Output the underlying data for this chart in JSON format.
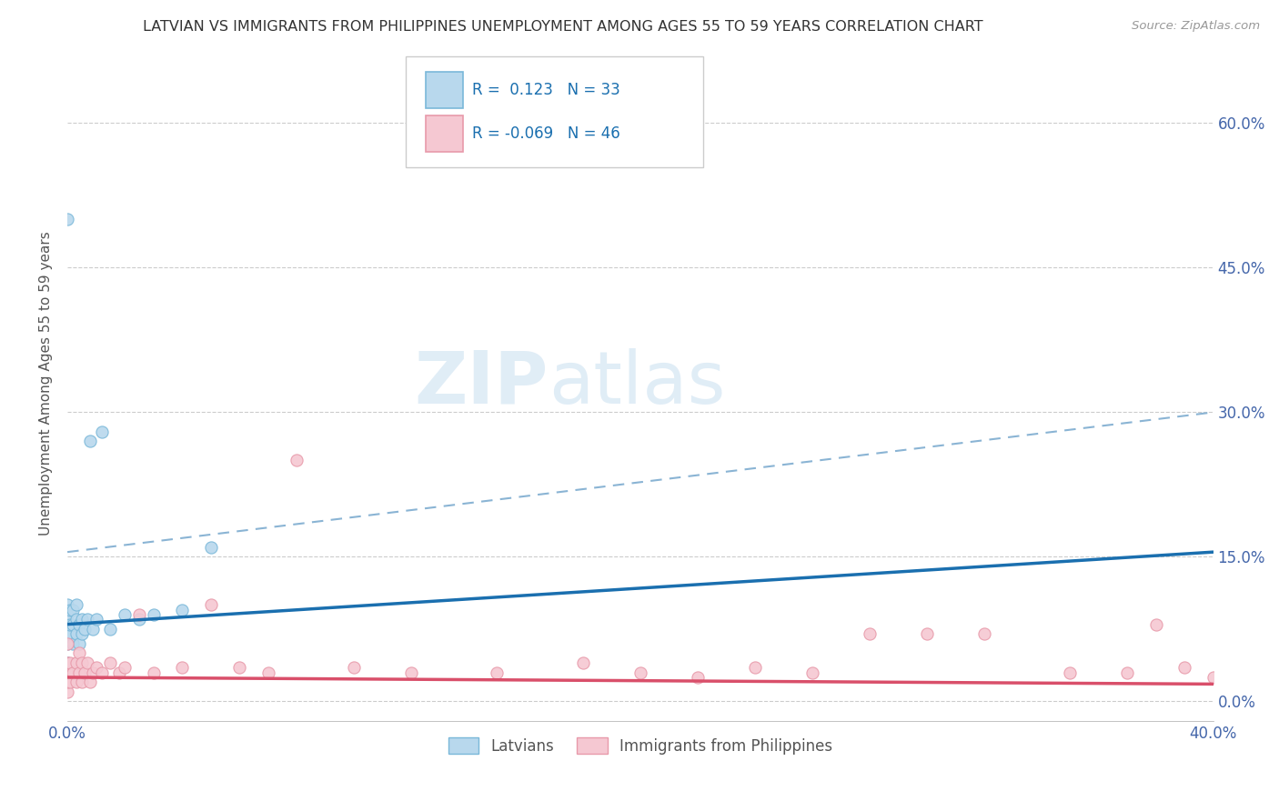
{
  "title": "LATVIAN VS IMMIGRANTS FROM PHILIPPINES UNEMPLOYMENT AMONG AGES 55 TO 59 YEARS CORRELATION CHART",
  "source": "Source: ZipAtlas.com",
  "ylabel": "Unemployment Among Ages 55 to 59 years",
  "xlim": [
    0.0,
    0.4
  ],
  "ylim": [
    -0.02,
    0.68
  ],
  "yticks": [
    0.0,
    0.15,
    0.3,
    0.45,
    0.6
  ],
  "ytick_labels": [
    "0.0%",
    "15.0%",
    "30.0%",
    "45.0%",
    "60.0%"
  ],
  "xticks": [
    0.0,
    0.4
  ],
  "xtick_labels": [
    "0.0%",
    "40.0%"
  ],
  "latvian_color": "#7ab8d9",
  "latvian_fill": "#b8d8ed",
  "philippines_color": "#e89aaa",
  "philippines_fill": "#f5c8d2",
  "latvian_R": 0.123,
  "latvian_N": 33,
  "philippines_R": -0.069,
  "philippines_N": 46,
  "legend_label_latvian": "Latvians",
  "legend_label_philippines": "Immigrants from Philippines",
  "watermark_zip": "ZIP",
  "watermark_atlas": "atlas",
  "latvian_points_x": [
    0.0,
    0.0,
    0.0,
    0.0,
    0.0,
    0.0,
    0.0,
    0.0,
    0.001,
    0.001,
    0.001,
    0.002,
    0.002,
    0.002,
    0.003,
    0.003,
    0.003,
    0.004,
    0.004,
    0.005,
    0.005,
    0.006,
    0.007,
    0.008,
    0.009,
    0.01,
    0.012,
    0.015,
    0.02,
    0.025,
    0.03,
    0.04,
    0.05
  ],
  "latvian_points_y": [
    0.5,
    0.03,
    0.04,
    0.06,
    0.07,
    0.08,
    0.09,
    0.1,
    0.07,
    0.08,
    0.095,
    0.06,
    0.08,
    0.095,
    0.07,
    0.085,
    0.1,
    0.06,
    0.08,
    0.07,
    0.085,
    0.075,
    0.085,
    0.27,
    0.075,
    0.085,
    0.28,
    0.075,
    0.09,
    0.085,
    0.09,
    0.095,
    0.16
  ],
  "philippines_points_x": [
    0.0,
    0.0,
    0.0,
    0.0,
    0.0,
    0.001,
    0.001,
    0.002,
    0.003,
    0.003,
    0.004,
    0.004,
    0.005,
    0.005,
    0.006,
    0.007,
    0.008,
    0.009,
    0.01,
    0.012,
    0.015,
    0.018,
    0.02,
    0.025,
    0.03,
    0.04,
    0.05,
    0.06,
    0.07,
    0.08,
    0.1,
    0.12,
    0.15,
    0.18,
    0.2,
    0.22,
    0.24,
    0.26,
    0.28,
    0.3,
    0.32,
    0.35,
    0.37,
    0.38,
    0.39,
    0.4
  ],
  "philippines_points_y": [
    0.01,
    0.02,
    0.03,
    0.04,
    0.06,
    0.02,
    0.04,
    0.03,
    0.02,
    0.04,
    0.03,
    0.05,
    0.02,
    0.04,
    0.03,
    0.04,
    0.02,
    0.03,
    0.035,
    0.03,
    0.04,
    0.03,
    0.035,
    0.09,
    0.03,
    0.035,
    0.1,
    0.035,
    0.03,
    0.25,
    0.035,
    0.03,
    0.03,
    0.04,
    0.03,
    0.025,
    0.035,
    0.03,
    0.07,
    0.07,
    0.07,
    0.03,
    0.03,
    0.08,
    0.035,
    0.025
  ],
  "blue_line_x": [
    0.0,
    0.4
  ],
  "blue_line_y": [
    0.08,
    0.155
  ],
  "pink_line_x": [
    0.0,
    0.4
  ],
  "pink_line_y": [
    0.025,
    0.018
  ],
  "dashed_line_x": [
    0.0,
    0.4
  ],
  "dashed_line_y": [
    0.155,
    0.3
  ],
  "blue_line_color": "#1a6faf",
  "pink_line_color": "#d94f6a",
  "dashed_line_color": "#8ab4d4",
  "background_color": "#ffffff",
  "grid_color": "#cccccc",
  "title_color": "#333333",
  "axis_label_color": "#555555",
  "right_tick_color": "#4466aa",
  "legend_text_color": "#1a6faf"
}
